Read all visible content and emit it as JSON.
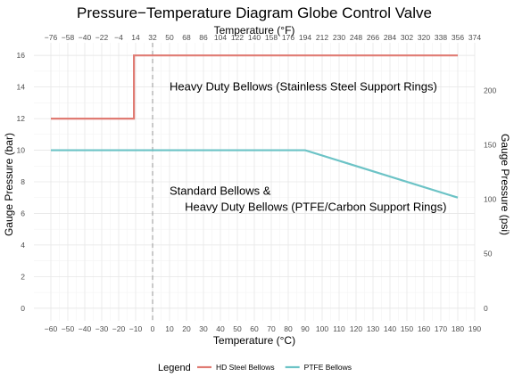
{
  "chart_data": {
    "type": "line",
    "title": "Pressure−Temperature Diagram Globe Control Valve",
    "xlabel": "Temperature (°C)",
    "ylabel": "Gauge Pressure (bar)",
    "x2label": "Temperature (°F)",
    "y2label": "Gauge Pressure (psi)",
    "xlim": [
      -70,
      190
    ],
    "ylim": [
      -0.8,
      16.8
    ],
    "x_ticks": [
      -60,
      -50,
      -40,
      -30,
      -20,
      -10,
      0,
      10,
      20,
      30,
      40,
      50,
      60,
      70,
      80,
      90,
      100,
      110,
      120,
      130,
      140,
      150,
      160,
      170,
      180,
      190
    ],
    "y_ticks": [
      0,
      2,
      4,
      6,
      8,
      10,
      12,
      14,
      16
    ],
    "x2_ticks": [
      "−76",
      "−58",
      "−40",
      "−22",
      "−4",
      "14",
      "32",
      "50",
      "68",
      "86",
      "104",
      "122",
      "140",
      "158",
      "176",
      "194",
      "212",
      "230",
      "248",
      "266",
      "284",
      "302",
      "320",
      "338",
      "356",
      "374"
    ],
    "y2_ticks": [
      0,
      50,
      100,
      150,
      200
    ],
    "grid": true,
    "reference_line": {
      "x": 0,
      "style": "dashed"
    },
    "series": [
      {
        "name": "HD Steel Bellows",
        "color": "#E07B73",
        "x": [
          -60,
          -11,
          -11,
          180
        ],
        "y": [
          12,
          12,
          16,
          16
        ]
      },
      {
        "name": "PTFE Bellows",
        "color": "#6CC3C6",
        "x": [
          -60,
          90,
          180
        ],
        "y": [
          10,
          10,
          7
        ]
      }
    ],
    "annotations": [
      {
        "text": "Heavy Duty Bellows (Stainless Steel Support Rings)",
        "x": 10,
        "y": 14
      },
      {
        "text": "Standard Bellows &",
        "x": 10,
        "y": 7.4
      },
      {
        "text": "Heavy Duty Bellows (PTFE/Carbon Support Rings)",
        "x": 19,
        "y": 6.4
      }
    ],
    "legend": {
      "title": "Legend",
      "position": "bottom",
      "items": [
        "HD Steel Bellows",
        "PTFE Bellows"
      ]
    }
  }
}
